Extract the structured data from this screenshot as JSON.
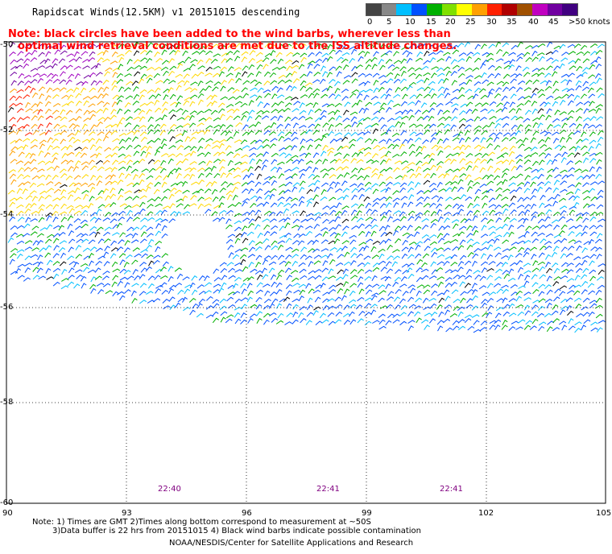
{
  "title": "Rapidscat Winds(12.5KM) v1 20151015 descending",
  "note_line1": "Note: black circles have been added to the wind barbs, wherever less than",
  "note_line2": "optimal wind retrieval conditions are met due to the ISS altitude changes.",
  "scale": {
    "labels": [
      "0",
      "5",
      "10",
      "15",
      "20",
      "25",
      "30",
      "35",
      "40",
      "45",
      ">50 knots"
    ],
    "colors": [
      "#444444",
      "#888888",
      "#00bfff",
      "#0050ff",
      "#00b000",
      "#80e000",
      "#ffff00",
      "#ffa000",
      "#ff2000",
      "#b00000",
      "#a05000",
      "#c000c0",
      "#7000a0",
      "#400080"
    ]
  },
  "lat_labels": [
    "-50",
    "-52",
    "-54",
    "-56",
    "-58",
    "-60"
  ],
  "lon_labels": [
    "90",
    "93",
    "96",
    "99",
    "102",
    "105"
  ],
  "times": [
    "22:40",
    "22:41",
    "22:41"
  ],
  "footer": {
    "line1": "Note: 1) Times are GMT 2)Times along bottom correspond to measurement at ~50S",
    "line2": "3)Data buffer is 22 hrs from 20151015 4) Black wind barbs indicate possible contamination",
    "line3": "NOAA/NESDIS/Center for Satellite Applications and Research"
  }
}
